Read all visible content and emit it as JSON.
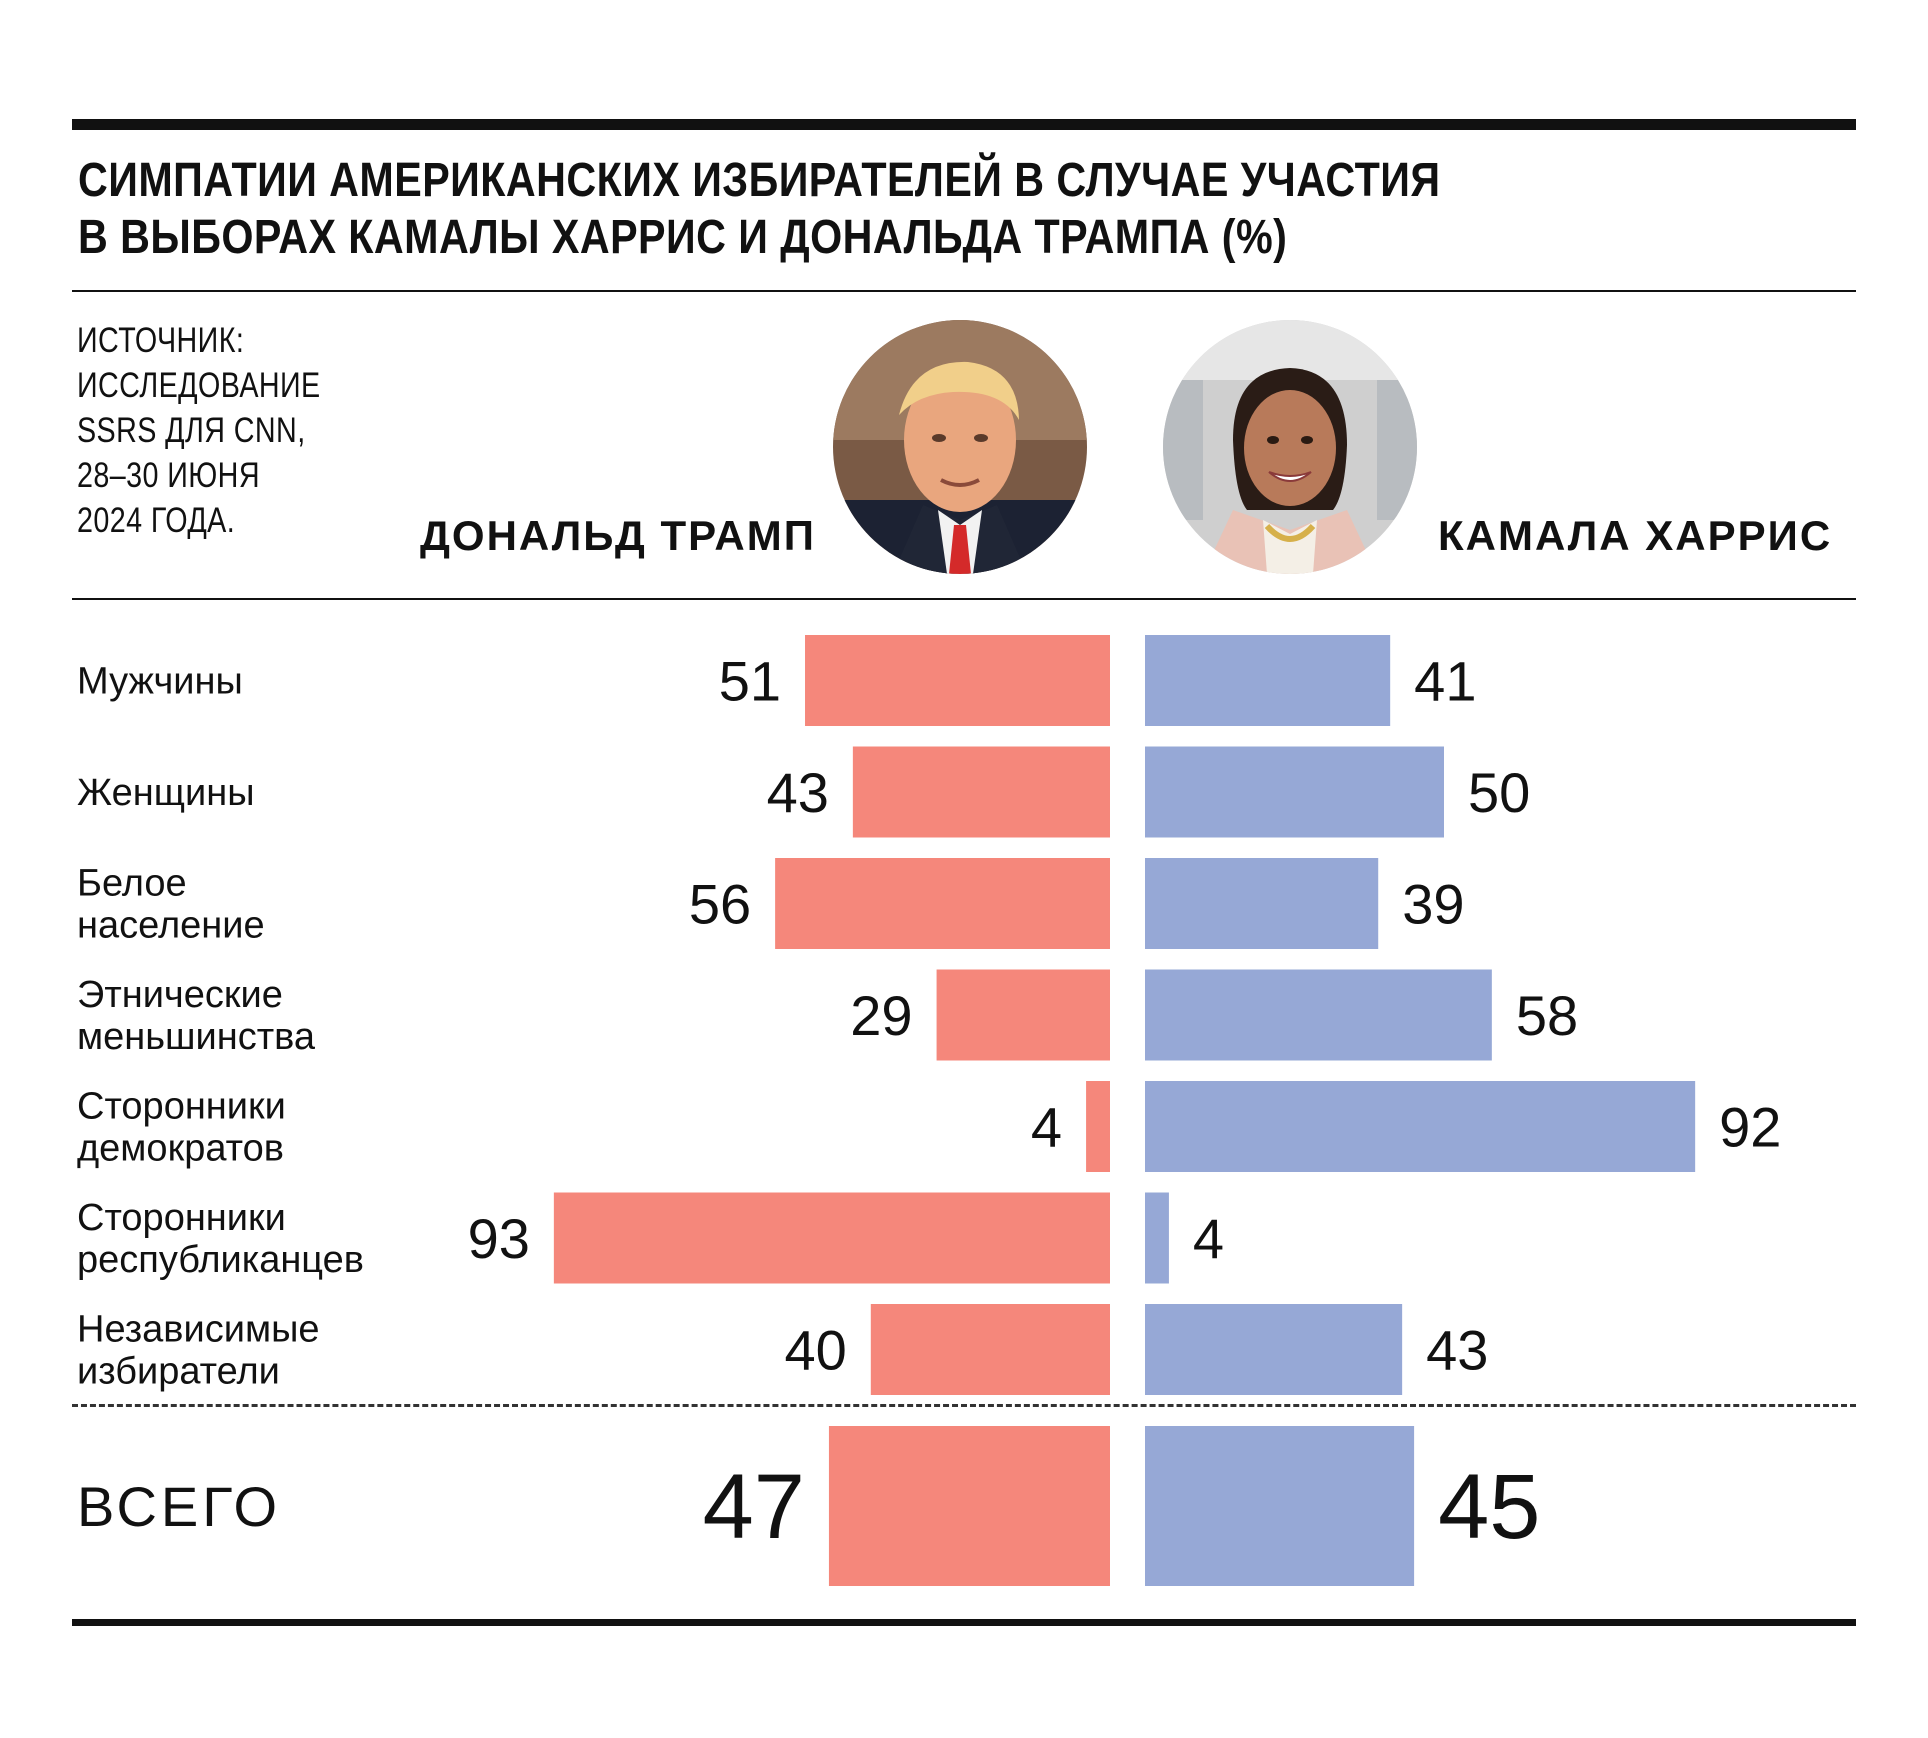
{
  "title": {
    "line1": "СИМПАТИИ АМЕРИКАНСКИХ ИЗБИРАТЕЛЕЙ В СЛУЧАЕ УЧАСТИЯ",
    "line2": "В ВЫБОРАХ КАМАЛЫ ХАРРИС И ДОНАЛЬДА ТРАМПА (%)"
  },
  "source": {
    "lines": [
      "ИСТОЧНИК:",
      "ИССЛЕДОВАНИЕ",
      "SSRS ДЛЯ CNN,",
      "28–30 ИЮНЯ",
      "2024 ГОДА."
    ]
  },
  "candidates": {
    "left": "ДОНАЛЬД ТРАМП",
    "right": "КАМАЛА ХАРРИС"
  },
  "chart_data": {
    "type": "bar",
    "orientation": "diverging-horizontal",
    "categories": [
      [
        "Мужчины"
      ],
      [
        "Женщины"
      ],
      [
        "Белое",
        "население"
      ],
      [
        "Этнические",
        "меньшинства"
      ],
      [
        "Сторонники",
        "демократов"
      ],
      [
        "Сторонники",
        "республиканцев"
      ],
      [
        "Независимые",
        "избиратели"
      ]
    ],
    "series": [
      {
        "name": "ДОНАЛЬД ТРАМП",
        "color": "#f5877b",
        "values": [
          51,
          43,
          56,
          29,
          4,
          93,
          40
        ]
      },
      {
        "name": "КАМАЛА ХАРРИС",
        "color": "#96a8d6",
        "values": [
          41,
          50,
          39,
          58,
          92,
          4,
          43
        ]
      }
    ],
    "total": {
      "label": "ВСЕГО",
      "values": [
        47,
        45
      ]
    },
    "unit": "%",
    "grid": false
  }
}
